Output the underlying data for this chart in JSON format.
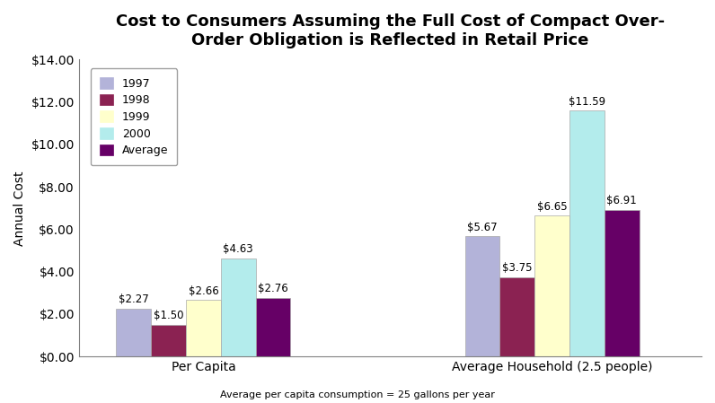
{
  "title": "Cost to Consumers Assuming the Full Cost of Compact Over-\nOrder Obligation is Reflected in Retail Price",
  "ylabel": "Annual Cost",
  "xlabel_note": "Average per capita consumption = 25 gallons per year",
  "categories": [
    "Per Capita",
    "Average Household (2.5 people)"
  ],
  "series_labels": [
    "1997",
    "1998",
    "1999",
    "2000",
    "Average"
  ],
  "series_colors": [
    "#b3b3d9",
    "#8b2252",
    "#ffffcc",
    "#b3ecec",
    "#660066"
  ],
  "values": [
    [
      2.27,
      1.5,
      2.66,
      4.63,
      2.76
    ],
    [
      5.67,
      3.75,
      6.65,
      11.59,
      6.91
    ]
  ],
  "ylim": [
    0,
    14
  ],
  "yticks": [
    0,
    2,
    4,
    6,
    8,
    10,
    12,
    14
  ],
  "ytick_labels": [
    "$0.00",
    "$2.00",
    "$4.00",
    "$6.00",
    "$8.00",
    "$10.00",
    "$12.00",
    "$14.00"
  ],
  "title_fontsize": 13,
  "label_fontsize": 9,
  "axis_label_fontsize": 10,
  "background_color": "#ffffff",
  "plot_background": "#ffffff",
  "border_color": "#808080"
}
